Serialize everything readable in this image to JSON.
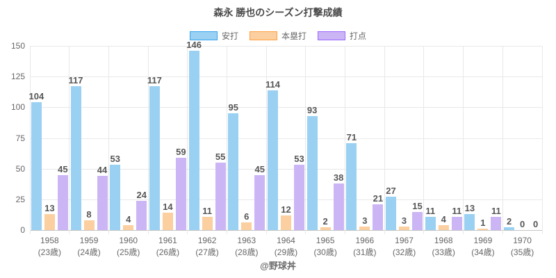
{
  "title": "森永 勝也のシーズン打撃成績",
  "footer": "@野球丼",
  "chart_data": {
    "type": "bar",
    "title": "森永 勝也のシーズン打撃成績",
    "categories": [
      "1958",
      "1959",
      "1960",
      "1961",
      "1962",
      "1963",
      "1964",
      "1965",
      "1966",
      "1967",
      "1968",
      "1969",
      "1970"
    ],
    "category_sublabels": [
      "(23歳)",
      "(24歳)",
      "(25歳)",
      "(26歳)",
      "(27歳)",
      "(28歳)",
      "(29歳)",
      "(30歳)",
      "(31歳)",
      "(32歳)",
      "(33歳)",
      "(34歳)",
      "(35歳)"
    ],
    "series": [
      {
        "name": "安打",
        "fill": "#9ad1f2",
        "border": "#36a2eb",
        "values": [
          104,
          117,
          53,
          117,
          146,
          95,
          114,
          93,
          71,
          27,
          11,
          13,
          2
        ]
      },
      {
        "name": "本塁打",
        "fill": "#fbcf9f",
        "border": "#ff9f40",
        "values": [
          13,
          8,
          4,
          14,
          11,
          6,
          12,
          2,
          3,
          3,
          4,
          1,
          0
        ]
      },
      {
        "name": "打点",
        "fill": "#ccb5f5",
        "border": "#9966ff",
        "values": [
          45,
          44,
          24,
          59,
          55,
          45,
          53,
          38,
          21,
          15,
          11,
          11,
          0
        ]
      }
    ],
    "ylim": [
      0,
      150
    ],
    "yticks": [
      0,
      25,
      50,
      75,
      100,
      125,
      150
    ],
    "grid": true,
    "legend_position": "top",
    "annotation": "value labels shown above each bar"
  }
}
